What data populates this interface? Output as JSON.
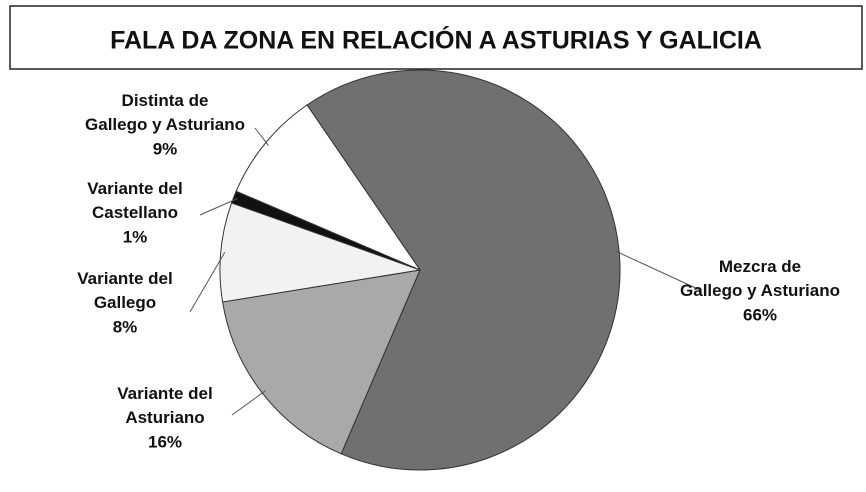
{
  "chart_data": {
    "type": "pie",
    "title": "FALA DA ZONA EN RELACIÓN A ASTURIAS Y GALICIA",
    "categories": [
      "Mezcra de\nGallego y Asturiano",
      "Variante del\nAsturiano",
      "Variante del\nGallego",
      "Variante del\nCastellano",
      "Distinta de\nGallego y Asturiano"
    ],
    "values": [
      66,
      16,
      8,
      1,
      9
    ],
    "value_labels": [
      "66%",
      "16%",
      "8%",
      "1%",
      "9%"
    ],
    "colors": [
      "#707070",
      "#a9a9a9",
      "#f2f2f2",
      "#111111",
      "#ffffff"
    ]
  }
}
